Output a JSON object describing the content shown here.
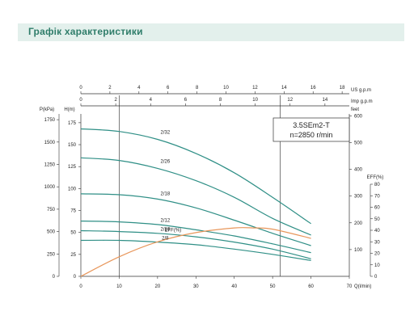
{
  "header": {
    "title": "Графік характеристики"
  },
  "chart_data": {
    "type": "line",
    "model": "3.5SEm2-T",
    "speed": "n=2850 r/min",
    "x_axis": {
      "label": "Q(l/min)",
      "ticks": [
        0,
        10,
        20,
        30,
        40,
        50,
        60,
        70
      ],
      "range": [
        0,
        70
      ]
    },
    "x_top_us": {
      "label": "US g.p.m",
      "ticks": [
        0,
        2,
        4,
        6,
        8,
        10,
        12,
        14,
        16,
        18
      ]
    },
    "x_top_imp": {
      "label": "Imp g.p.m",
      "ticks": [
        0,
        2,
        4,
        6,
        8,
        10,
        12,
        14
      ]
    },
    "y_left_head": {
      "label": "H(m)",
      "ticks": [
        0,
        25,
        50,
        75,
        100,
        125,
        150,
        175
      ],
      "range": [
        0,
        185
      ]
    },
    "y_left_pressure": {
      "label": "P(kPa)",
      "ticks": [
        0,
        250,
        500,
        750,
        1000,
        1250,
        1500,
        1750
      ]
    },
    "y_right_feet": {
      "label": "feet",
      "ticks": [
        100,
        200,
        300,
        400,
        500,
        600
      ]
    },
    "y_right_eff": {
      "label": "EFF(%)",
      "ticks": [
        0,
        10,
        20,
        30,
        40,
        50,
        60,
        70,
        80
      ],
      "range": [
        0,
        80
      ]
    },
    "vlines": [
      10,
      52
    ],
    "series": [
      {
        "name": "2/32",
        "x": [
          0,
          10,
          20,
          30,
          40,
          50,
          60
        ],
        "y": [
          168,
          165,
          156,
          140,
          118,
          90,
          60
        ]
      },
      {
        "name": "2/26",
        "x": [
          0,
          10,
          20,
          30,
          40,
          50,
          60
        ],
        "y": [
          135,
          132,
          123,
          109,
          90,
          66,
          47
        ]
      },
      {
        "name": "2/18",
        "x": [
          0,
          10,
          20,
          30,
          40,
          50,
          60
        ],
        "y": [
          94,
          93,
          88,
          78,
          64,
          49,
          35
        ]
      },
      {
        "name": "2/12",
        "x": [
          0,
          10,
          20,
          30,
          40,
          50,
          60
        ],
        "y": [
          63,
          62,
          59,
          53,
          46,
          37,
          27
        ]
      },
      {
        "name": "2/10",
        "x": [
          0,
          10,
          20,
          30,
          40,
          50,
          60
        ],
        "y": [
          52,
          51,
          49,
          45,
          39,
          31,
          20
        ]
      },
      {
        "name": "2/8",
        "x": [
          0,
          10,
          20,
          30,
          40,
          50,
          60
        ],
        "y": [
          41,
          41,
          39,
          36,
          31,
          25,
          18
        ]
      }
    ],
    "efficiency": {
      "name": "EFF(%)",
      "x": [
        0,
        10,
        20,
        30,
        40,
        45,
        50,
        60
      ],
      "y": [
        0,
        17,
        30,
        38,
        42,
        42,
        41,
        33
      ]
    }
  }
}
